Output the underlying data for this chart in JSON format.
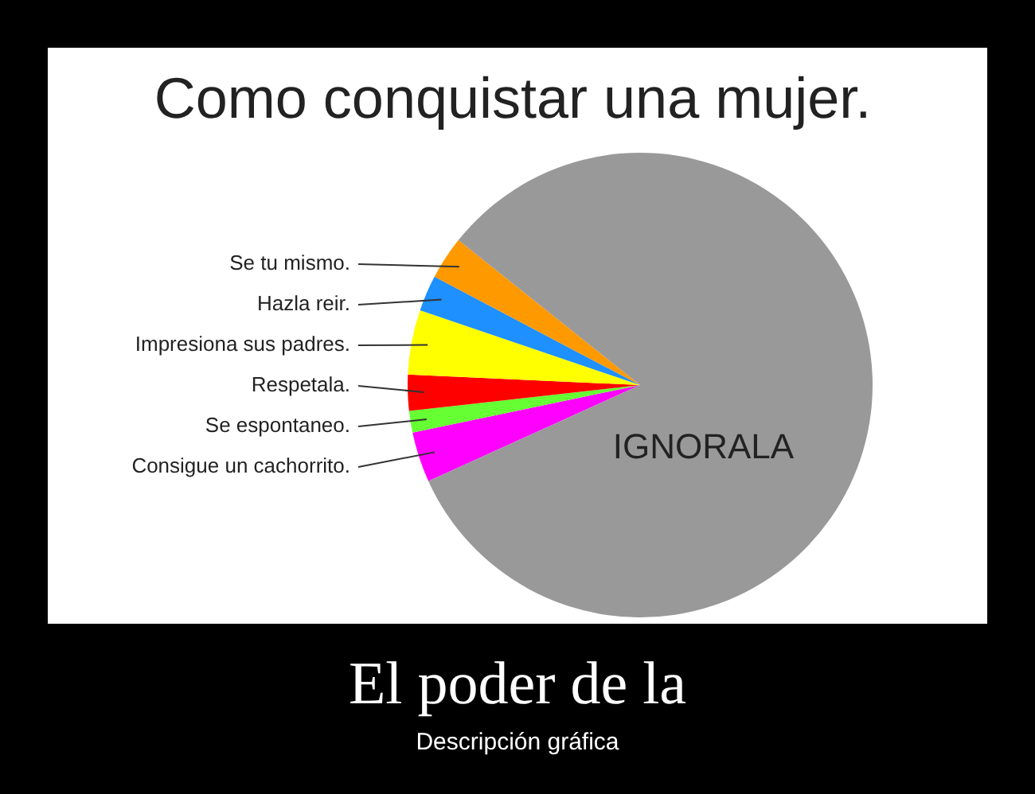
{
  "chart_data": {
    "type": "pie",
    "title": "Como conquistar una mujer.",
    "categories": [
      "Consigue un cachorrito.",
      "Se espontaneo.",
      "Respetala.",
      "Impresiona sus padres.",
      "Hazla reir.",
      "Se tu mismo.",
      "IGNORALA"
    ],
    "values": [
      3.5,
      1.5,
      2.5,
      4.5,
      2.5,
      3,
      82.5
    ],
    "colors": [
      "#ff00ff",
      "#66ff33",
      "#ff0000",
      "#ffff00",
      "#1e90ff",
      "#ff9900",
      "#999999"
    ],
    "annotations": [
      "El poder de la",
      "Descripción gráfica"
    ]
  }
}
